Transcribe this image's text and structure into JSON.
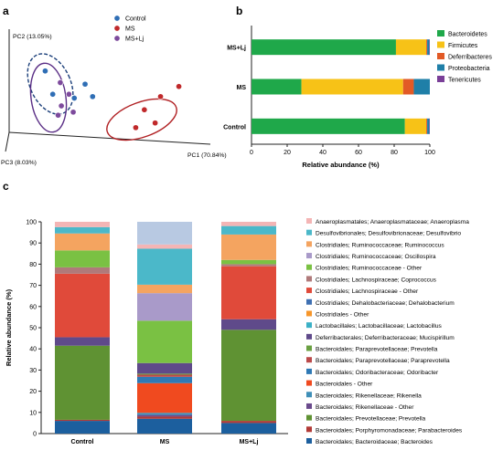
{
  "panels": {
    "a": "a",
    "b": "b",
    "c": "c"
  },
  "chart_data": [
    {
      "type": "scatter",
      "panel": "a",
      "axes": {
        "pc1": "PC1 (70.84%)",
        "pc2": "PC2 (13.05%)",
        "pc3": "PC3 (8.03%)"
      },
      "legend_position": "top-center",
      "series": [
        {
          "name": "Control",
          "color": "#2f6eb5",
          "points": [
            [
              -0.62,
              0.55
            ],
            [
              -0.25,
              0.38
            ],
            [
              -0.18,
              0.22
            ],
            [
              -0.35,
              0.2
            ],
            [
              -0.55,
              0.25
            ]
          ]
        },
        {
          "name": "MS",
          "color": "#c0292b",
          "points": [
            [
              0.62,
              0.35
            ],
            [
              0.45,
              0.22
            ],
            [
              0.3,
              0.05
            ],
            [
              0.4,
              -0.12
            ],
            [
              0.22,
              -0.18
            ]
          ]
        },
        {
          "name": "MS+Lj",
          "color": "#7d4a9c",
          "points": [
            [
              -0.48,
              0.4
            ],
            [
              -0.4,
              0.25
            ],
            [
              -0.47,
              0.1
            ],
            [
              -0.36,
              0.02
            ],
            [
              -0.5,
              -0.02
            ]
          ]
        }
      ]
    },
    {
      "type": "bar",
      "orientation": "horizontal",
      "stacked": true,
      "panel": "b",
      "categories": [
        "MS+Lj",
        "MS",
        "Control"
      ],
      "xlabel": "Relative abundance (%)",
      "xlim": [
        0,
        100
      ],
      "xticks": [
        "0",
        "20",
        "40",
        "60",
        "80",
        "100"
      ],
      "legend_position": "right",
      "series": [
        {
          "name": "Bacteroidetes",
          "color": "#1fa84a",
          "values": [
            81,
            28,
            86
          ]
        },
        {
          "name": "Firmicutes",
          "color": "#f7c217",
          "values": [
            17,
            57,
            12
          ]
        },
        {
          "name": "Deferribacteres",
          "color": "#e25a26",
          "values": [
            0.5,
            6,
            0.5
          ]
        },
        {
          "name": "Proteobacteria",
          "color": "#1f7fa8",
          "values": [
            1.2,
            9,
            1.2
          ]
        },
        {
          "name": "Tenericutes",
          "color": "#7a3f98",
          "values": [
            0.3,
            0,
            0.3
          ]
        }
      ]
    },
    {
      "type": "bar",
      "stacked": true,
      "panel": "c",
      "categories": [
        "Control",
        "MS",
        "MS+Lj"
      ],
      "ylabel": "Relative abundance (%)",
      "ylim": [
        0,
        100
      ],
      "yticks": [
        "0",
        "10",
        "20",
        "30",
        "40",
        "50",
        "60",
        "70",
        "80",
        "90",
        "100"
      ],
      "legend_position": "right",
      "series": [
        {
          "name": "Bacteroidales; Bacteroidaceae; Bacteroides",
          "color": "#1c5f9e",
          "values": [
            6,
            7,
            5
          ]
        },
        {
          "name": "Bacteroidales; Porphyromonadaceae; Parabacteroides",
          "color": "#b23a36",
          "values": [
            0.5,
            1,
            1
          ]
        },
        {
          "name": "Bacteroidales; Prevotellaceae; Prevotella",
          "color": "#5f9233",
          "values": [
            35,
            0,
            43
          ]
        },
        {
          "name": "Bacteroidales; Rikenellaceae - Other",
          "color": "#6a4a8c",
          "values": [
            0,
            0.8,
            0
          ]
        },
        {
          "name": "Bacteroidales; Rikenellaceae; Rikenella",
          "color": "#3f8fb8",
          "values": [
            0,
            1,
            0
          ]
        },
        {
          "name": "Bacteroidales - Other",
          "color": "#f04a1f",
          "values": [
            0,
            14,
            0
          ]
        },
        {
          "name": "Bacteroidales; Odoribacteraceae; Odoribacter",
          "color": "#2e79b5",
          "values": [
            0,
            3,
            0
          ]
        },
        {
          "name": "Bacteroidales; Paraprevotellaceae; Paraprevotella",
          "color": "#bb4a4a",
          "values": [
            0,
            1,
            0
          ]
        },
        {
          "name": "Bacteroidales; Paraprevotellaceae; Prevotella",
          "color": "#6aa042",
          "values": [
            0,
            0.5,
            0
          ]
        },
        {
          "name": "Deferribacterales; Deferribacteraceae; Mucispirillum",
          "color": "#5f4a8a",
          "values": [
            4,
            5,
            5
          ]
        },
        {
          "name": "Lactobacillales; Lactobacillaceae; Lactobacillus",
          "color": "#3ab0c6",
          "values": [
            0,
            0,
            0
          ]
        },
        {
          "name": "Clostridiales - Other",
          "color": "#f7962a",
          "values": [
            0,
            0,
            0
          ]
        },
        {
          "name": "Clostridiales; Dehalobacteriaceae; Dehalobacterium",
          "color": "#3f70b2",
          "values": [
            0,
            0,
            0
          ]
        },
        {
          "name": "Clostridiales; Lachnospiraceae - Other",
          "color": "#e04a3a",
          "values": [
            30,
            0,
            25
          ]
        },
        {
          "name": "Clostridiales; Lachnospiraceae; Coprococcus",
          "color": "#b07a7a",
          "values": [
            3,
            0,
            1
          ]
        },
        {
          "name": "Clostridiales; Ruminococcaceae - Other",
          "color": "#7ac143",
          "values": [
            8,
            20,
            2
          ]
        },
        {
          "name": "Clostridiales; Ruminococcaceae; Oscillospira",
          "color": "#a99ac9",
          "values": [
            0,
            13,
            0
          ]
        },
        {
          "name": "Clostridiales; Ruminococcaceae; Ruminococcus",
          "color": "#f4a460",
          "values": [
            8,
            4,
            12
          ]
        },
        {
          "name": "Desulfovibrionales; Desulfovibrionaceae; Desulfovibrio",
          "color": "#4bb8c9",
          "values": [
            3,
            17,
            4
          ]
        },
        {
          "name": "Anaeroplasmatales; Anaeroplasmataceae; Anaeroplasma",
          "color": "#f4b5b5",
          "values": [
            2.5,
            2,
            2
          ]
        }
      ],
      "top_fill": {
        "color": "#b8c9e2"
      }
    }
  ]
}
